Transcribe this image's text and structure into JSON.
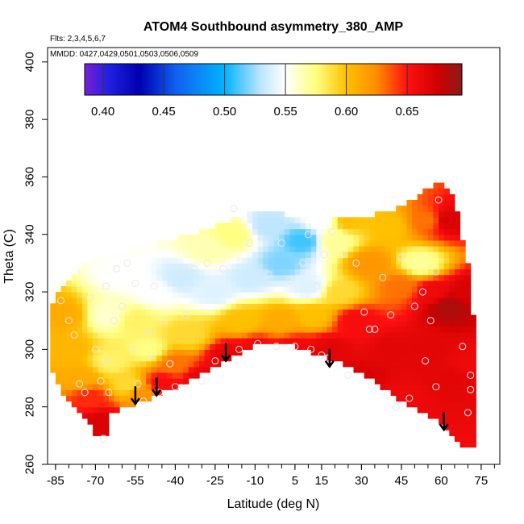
{
  "chart_data": {
    "type": "heatmap",
    "title": "ATOM4 Southbound asymmetry_380_AMP",
    "flights_note": "Flts: 2,3,4,5,6,7",
    "dates_note": "MMDD: 0427,0429,0501,0503,0506,0509",
    "xlabel": "Latitude (deg N)",
    "ylabel": "Theta (C)",
    "xlim": [
      -88,
      82
    ],
    "ylim": [
      260,
      405
    ],
    "x_ticks": [
      -85,
      -70,
      -55,
      -40,
      -25,
      -10,
      5,
      15,
      30,
      45,
      60,
      75
    ],
    "y_ticks": [
      260,
      280,
      300,
      320,
      340,
      360,
      380,
      400
    ],
    "colorbar": {
      "range": [
        0.385,
        0.695
      ],
      "ticks": [
        0.4,
        0.45,
        0.5,
        0.55,
        0.6,
        0.65
      ],
      "tick_labels": [
        "0.40",
        "0.45",
        "0.50",
        "0.55",
        "0.60",
        "0.65"
      ],
      "stops": [
        {
          "v": 0.385,
          "color": "#7a1fd6"
        },
        {
          "v": 0.405,
          "color": "#2020e0"
        },
        {
          "v": 0.43,
          "color": "#0000b0"
        },
        {
          "v": 0.46,
          "color": "#1060f0"
        },
        {
          "v": 0.5,
          "color": "#00b4ff"
        },
        {
          "v": 0.53,
          "color": "#bfe6ff"
        },
        {
          "v": 0.55,
          "color": "#ffffff"
        },
        {
          "v": 0.575,
          "color": "#ffff80"
        },
        {
          "v": 0.6,
          "color": "#ffc000"
        },
        {
          "v": 0.625,
          "color": "#ff8c00"
        },
        {
          "v": 0.65,
          "color": "#ff1010"
        },
        {
          "v": 0.675,
          "color": "#d00000"
        },
        {
          "v": 0.695,
          "color": "#8b1a1a"
        }
      ]
    },
    "valid_domain_boundary": {
      "upper": [
        [
          -86,
          316
        ],
        [
          -83,
          321
        ],
        [
          -79,
          326
        ],
        [
          -73,
          330
        ],
        [
          -62,
          334
        ],
        [
          -50,
          336
        ],
        [
          -38,
          339
        ],
        [
          -27,
          342
        ],
        [
          -18,
          345
        ],
        [
          -12,
          348
        ],
        [
          0,
          347
        ],
        [
          15,
          345
        ],
        [
          28,
          346
        ],
        [
          42,
          348
        ],
        [
          55,
          356
        ],
        [
          60,
          358
        ],
        [
          65,
          352
        ],
        [
          70,
          330
        ],
        [
          72,
          312
        ]
      ],
      "lower": [
        [
          72,
          267
        ],
        [
          68,
          267
        ],
        [
          62,
          273
        ],
        [
          55,
          277
        ],
        [
          45,
          282
        ],
        [
          35,
          289
        ],
        [
          25,
          294
        ],
        [
          15,
          298
        ],
        [
          5,
          301
        ],
        [
          -10,
          302
        ],
        [
          -20,
          297
        ],
        [
          -30,
          292
        ],
        [
          -40,
          287
        ],
        [
          -47,
          284
        ],
        [
          -55,
          281
        ],
        [
          -60,
          280
        ],
        [
          -64,
          278
        ],
        [
          -66,
          271
        ],
        [
          -69,
          269
        ],
        [
          -74,
          276
        ],
        [
          -78,
          281
        ],
        [
          -82,
          285
        ],
        [
          -86,
          293
        ]
      ]
    },
    "field_anchors": [
      {
        "lat": -80,
        "theta": 300,
        "value": 0.605
      },
      {
        "lat": -82,
        "theta": 312,
        "value": 0.61
      },
      {
        "lat": -76,
        "theta": 290,
        "value": 0.61
      },
      {
        "lat": -72,
        "theta": 283,
        "value": 0.645
      },
      {
        "lat": -68,
        "theta": 275,
        "value": 0.67
      },
      {
        "lat": -65,
        "theta": 312,
        "value": 0.56
      },
      {
        "lat": -64,
        "theta": 296,
        "value": 0.58
      },
      {
        "lat": -60,
        "theta": 326,
        "value": 0.55
      },
      {
        "lat": -58,
        "theta": 288,
        "value": 0.59
      },
      {
        "lat": -55,
        "theta": 310,
        "value": 0.58
      },
      {
        "lat": -52,
        "theta": 285,
        "value": 0.62
      },
      {
        "lat": -50,
        "theta": 300,
        "value": 0.575
      },
      {
        "lat": -48,
        "theta": 320,
        "value": 0.55
      },
      {
        "lat": -45,
        "theta": 288,
        "value": 0.655
      },
      {
        "lat": -40,
        "theta": 295,
        "value": 0.63
      },
      {
        "lat": -38,
        "theta": 325,
        "value": 0.535
      },
      {
        "lat": -35,
        "theta": 305,
        "value": 0.59
      },
      {
        "lat": -30,
        "theta": 290,
        "value": 0.665
      },
      {
        "lat": -28,
        "theta": 335,
        "value": 0.565
      },
      {
        "lat": -25,
        "theta": 320,
        "value": 0.54
      },
      {
        "lat": -20,
        "theta": 298,
        "value": 0.665
      },
      {
        "lat": -18,
        "theta": 340,
        "value": 0.575
      },
      {
        "lat": -15,
        "theta": 310,
        "value": 0.6
      },
      {
        "lat": -12,
        "theta": 325,
        "value": 0.535
      },
      {
        "lat": -10,
        "theta": 300,
        "value": 0.66
      },
      {
        "lat": -5,
        "theta": 343,
        "value": 0.53
      },
      {
        "lat": 0,
        "theta": 330,
        "value": 0.52
      },
      {
        "lat": 0,
        "theta": 310,
        "value": 0.61
      },
      {
        "lat": 5,
        "theta": 300,
        "value": 0.66
      },
      {
        "lat": 8,
        "theta": 338,
        "value": 0.51
      },
      {
        "lat": 10,
        "theta": 322,
        "value": 0.54
      },
      {
        "lat": 12,
        "theta": 312,
        "value": 0.6
      },
      {
        "lat": 15,
        "theta": 345,
        "value": 0.55
      },
      {
        "lat": 18,
        "theta": 300,
        "value": 0.665
      },
      {
        "lat": 20,
        "theta": 338,
        "value": 0.57
      },
      {
        "lat": 22,
        "theta": 320,
        "value": 0.59
      },
      {
        "lat": 25,
        "theta": 345,
        "value": 0.6
      },
      {
        "lat": 28,
        "theta": 310,
        "value": 0.655
      },
      {
        "lat": 30,
        "theta": 290,
        "value": 0.67
      },
      {
        "lat": 33,
        "theta": 330,
        "value": 0.62
      },
      {
        "lat": 40,
        "theta": 343,
        "value": 0.6
      },
      {
        "lat": 42,
        "theta": 300,
        "value": 0.665
      },
      {
        "lat": 45,
        "theta": 283,
        "value": 0.66
      },
      {
        "lat": 45,
        "theta": 322,
        "value": 0.63
      },
      {
        "lat": 52,
        "theta": 330,
        "value": 0.57
      },
      {
        "lat": 55,
        "theta": 345,
        "value": 0.63
      },
      {
        "lat": 57,
        "theta": 320,
        "value": 0.66
      },
      {
        "lat": 55,
        "theta": 300,
        "value": 0.665
      },
      {
        "lat": 62,
        "theta": 345,
        "value": 0.67
      },
      {
        "lat": 63,
        "theta": 315,
        "value": 0.685
      },
      {
        "lat": 63,
        "theta": 290,
        "value": 0.665
      },
      {
        "lat": 70,
        "theta": 295,
        "value": 0.66
      },
      {
        "lat": 70,
        "theta": 320,
        "value": 0.67
      }
    ],
    "observations": [
      {
        "lat": -83,
        "theta": 317
      },
      {
        "lat": -80,
        "theta": 310
      },
      {
        "lat": -78,
        "theta": 305
      },
      {
        "lat": -76,
        "theta": 288
      },
      {
        "lat": -74,
        "theta": 285
      },
      {
        "lat": -72,
        "theta": 318
      },
      {
        "lat": -70,
        "theta": 300
      },
      {
        "lat": -68,
        "theta": 289
      },
      {
        "lat": -66,
        "theta": 322
      },
      {
        "lat": -66,
        "theta": 296
      },
      {
        "lat": -65,
        "theta": 285
      },
      {
        "lat": -67,
        "theta": 269
      },
      {
        "lat": -63,
        "theta": 310
      },
      {
        "lat": -62,
        "theta": 328
      },
      {
        "lat": -60,
        "theta": 315
      },
      {
        "lat": -58,
        "theta": 330
      },
      {
        "lat": -56,
        "theta": 300
      },
      {
        "lat": -55,
        "theta": 323
      },
      {
        "lat": -54,
        "theta": 288
      },
      {
        "lat": -52,
        "theta": 282
      },
      {
        "lat": -50,
        "theta": 306
      },
      {
        "lat": -49,
        "theta": 298
      },
      {
        "lat": -48,
        "theta": 322
      },
      {
        "lat": -46,
        "theta": 285
      },
      {
        "lat": -44,
        "theta": 310
      },
      {
        "lat": -42,
        "theta": 295
      },
      {
        "lat": -40,
        "theta": 287
      },
      {
        "lat": -38,
        "theta": 327
      },
      {
        "lat": -36,
        "theta": 312
      },
      {
        "lat": -33,
        "theta": 328
      },
      {
        "lat": -30,
        "theta": 289
      },
      {
        "lat": -28,
        "theta": 330
      },
      {
        "lat": -25,
        "theta": 296
      },
      {
        "lat": -22,
        "theta": 328
      },
      {
        "lat": -18,
        "theta": 349
      },
      {
        "lat": -16,
        "theta": 300
      },
      {
        "lat": -12,
        "theta": 337
      },
      {
        "lat": -9,
        "theta": 302
      },
      {
        "lat": -5,
        "theta": 326
      },
      {
        "lat": -2,
        "theta": 301
      },
      {
        "lat": 0,
        "theta": 337
      },
      {
        "lat": 3,
        "theta": 324
      },
      {
        "lat": 5,
        "theta": 301
      },
      {
        "lat": 8,
        "theta": 330
      },
      {
        "lat": 10,
        "theta": 340
      },
      {
        "lat": 11,
        "theta": 300
      },
      {
        "lat": 13,
        "theta": 322
      },
      {
        "lat": 15,
        "theta": 298
      },
      {
        "lat": 16,
        "theta": 333
      },
      {
        "lat": 17,
        "theta": 297
      },
      {
        "lat": 19,
        "theta": 341
      },
      {
        "lat": 23,
        "theta": 333
      },
      {
        "lat": 25,
        "theta": 291
      },
      {
        "lat": 28,
        "theta": 330
      },
      {
        "lat": 31,
        "theta": 313
      },
      {
        "lat": 33,
        "theta": 307
      },
      {
        "lat": 35,
        "theta": 307
      },
      {
        "lat": 38,
        "theta": 325
      },
      {
        "lat": 41,
        "theta": 312
      },
      {
        "lat": 43,
        "theta": 280
      },
      {
        "lat": 45,
        "theta": 332
      },
      {
        "lat": 48,
        "theta": 283
      },
      {
        "lat": 50,
        "theta": 315
      },
      {
        "lat": 53,
        "theta": 320
      },
      {
        "lat": 54,
        "theta": 296
      },
      {
        "lat": 56,
        "theta": 310
      },
      {
        "lat": 58,
        "theta": 287
      },
      {
        "lat": 58,
        "theta": 327
      },
      {
        "lat": 59,
        "theta": 352
      },
      {
        "lat": 68,
        "theta": 301
      },
      {
        "lat": 70,
        "theta": 278
      },
      {
        "lat": 71,
        "theta": 286
      },
      {
        "lat": 71,
        "theta": 291
      }
    ],
    "arrows": [
      {
        "lat": -55,
        "theta": 281
      },
      {
        "lat": -47,
        "theta": 284
      },
      {
        "lat": -21,
        "theta": 296
      },
      {
        "lat": 18,
        "theta": 294
      },
      {
        "lat": 61,
        "theta": 272
      }
    ]
  }
}
